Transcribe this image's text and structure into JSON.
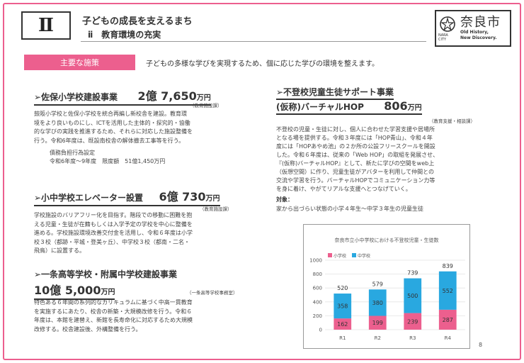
{
  "header": {
    "section_num": "Ⅱ",
    "title": "子どもの成長を支えるまち",
    "subtitle": "ⅱ　教育環境の充実",
    "logo_name": "奈良市",
    "logo_city": "NARA CITY",
    "logo_en1": "Old History,",
    "logo_en2": "New Discovery."
  },
  "main_policy": {
    "badge": "主要な施策",
    "intro": "子どもの多様な学びを実現するため、個に応じた学びの環境を整えます。"
  },
  "projects": {
    "saho": {
      "name": "➢佐保小学校建設事業",
      "amount": "2億 7,650",
      "unit": "万円",
      "dept": "（教育施設課）",
      "body": [
        "鼓阪小学校と佐保小学校を統合再編し新校舎を建設。教育環",
        "境をより良いものにし、ICTを活用した主体的・探究的・協働",
        "的な学びの実践を推進するため、それらに対応した施設整備を",
        "行う。令和6年度は、既設南校舎の解体撤去工事等を行う。"
      ],
      "debt_title": "債務負担行為設定",
      "debt_detail": "令和6年度～9年度　限度額　51億1,450万円"
    },
    "elevator": {
      "name": "➢小中学校エレベーター設置",
      "amount": "6億 730",
      "unit": "万円",
      "dept": "（教育施設課）",
      "body": [
        "学校施設のバリアフリー化を目指す。階段での移動に困難を抱",
        "える児童・生徒が在籍もしくは入学予定の学校を中心に整備を",
        "進める。学校施設環境改善交付金を活用し、令和６年度は小学",
        "校３校（都跡・平城・登美ヶ丘）、中学校３校（都南・二名・",
        "飛鳥）に設置する。"
      ]
    },
    "ichijo": {
      "name": "➢一条高等学校・附属中学校建設事業",
      "amount": "10億 5,000",
      "unit": "万円",
      "dept": "（一条高等学校事務室）",
      "body": [
        "特色ある６年間の系列的なカリキュラムに基づく中高一貫教育",
        "を実施するにあたり、校舎の新築・大規模改修を行う。令和６",
        "年度は、本館を建替え、新館を長寿命化に対応するため大規模",
        "改修する。校舎建設後、外構整備を行う。"
      ]
    },
    "futoko": {
      "name": "➢不登校児童生徒サポート事業",
      "name2": "(仮称)バーチャルHOP",
      "amount": "806",
      "unit": "万円",
      "dept": "（教育支援・相談課）",
      "body": [
        "不登校の児童・生徒に対し、個人に合わせた学習支援や居場所",
        "となる場を提供する。令和３年度には「HOP青山」、令和４年",
        "度には「HOPあやめ池」の２か所の公設フリースクールを開設",
        "した。令和６年度は、従来の「Web HOP」の取組を発展させ、",
        "『(仮称)バーチャルHOP』として、新たに学びの空間をweb上",
        "（仮想空間）に作り、児童生徒がアバターを利用して仲間との",
        "交流や学習を行う。バーチャルHOPでコミュニケーション力等",
        "を身に着け、やがてリアルな支援へとつなげていく。"
      ],
      "target_label": "対象：",
      "target": "家から出づらい状態の小学４年生～中学３年生の児童生徒"
    }
  },
  "chart_data": {
    "type": "bar",
    "stacked": true,
    "title": "奈良市立小中学校における不登校児童・生徒数",
    "categories": [
      "R1",
      "R2",
      "R3",
      "R4"
    ],
    "series": [
      {
        "name": "小学校",
        "values": [
          162,
          199,
          239,
          287
        ],
        "color": "#ec5f8e"
      },
      {
        "name": "中学校",
        "values": [
          358,
          380,
          500,
          552
        ],
        "color": "#29a8e0"
      }
    ],
    "totals": [
      520,
      579,
      739,
      839
    ],
    "ylim": [
      0,
      1000
    ],
    "yticks": [
      0,
      200,
      400,
      600,
      800,
      1000
    ],
    "grid": true,
    "legend": "top-left"
  },
  "page_number": "8"
}
